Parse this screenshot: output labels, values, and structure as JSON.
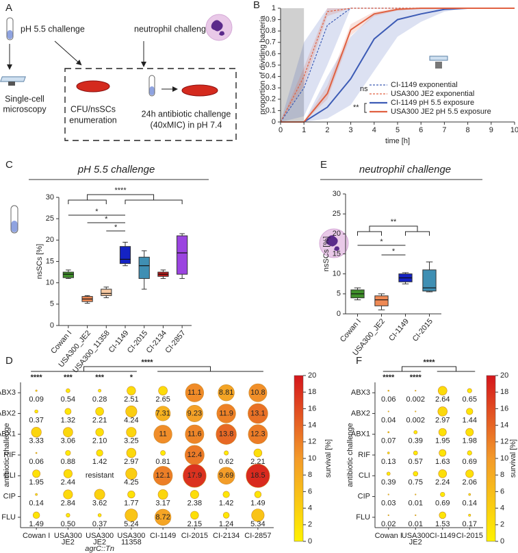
{
  "panel_labels": [
    "A",
    "B",
    "C",
    "D",
    "E",
    "F"
  ],
  "diagram": {
    "ph_challenge": "pH 5.5 challenge",
    "neutrophil_challenge": "neutrophil challenge",
    "microscopy": [
      "Single-cell",
      "microscopy"
    ],
    "enumeration": [
      "CFU/nsSCs",
      "enumeration"
    ],
    "antibiotic": [
      "24h antibiotic challenge",
      "(40xMIC) in pH 7.4"
    ]
  },
  "chart_data": [
    {
      "type": "line",
      "xlabel": "time [h]",
      "ylabel": "proportion of dividing bacteria",
      "x": [
        0,
        1,
        2,
        3,
        4,
        5,
        6,
        7,
        8,
        9,
        10
      ],
      "xlim": [
        0,
        10
      ],
      "xticks": [
        0,
        1,
        2,
        3,
        4,
        5,
        6,
        7,
        8,
        9,
        10
      ],
      "ylim": [
        0,
        1
      ],
      "yticks": [
        0,
        0.1,
        0.2,
        0.3,
        0.4,
        0.5,
        0.6,
        0.7,
        0.8,
        0.9,
        1
      ],
      "highlight_x": [
        0,
        1
      ],
      "highlight_color": "#d0d0d0",
      "annotations": [
        "ns",
        "**"
      ],
      "series": [
        {
          "name": "CI-1149 exponential",
          "color": "#3c5bb5",
          "linestyle": "dashed",
          "values": [
            0,
            0.3,
            0.85,
            1,
            1,
            1,
            1,
            1,
            1,
            1,
            1
          ],
          "lower": [
            0,
            0.05,
            0.5,
            1,
            1,
            1,
            1,
            1,
            1,
            1,
            1
          ],
          "upper": [
            0,
            0.7,
            1,
            1,
            1,
            1,
            1,
            1,
            1,
            1,
            1
          ]
        },
        {
          "name": "USA300 JE2 exponential",
          "color": "#e06040",
          "linestyle": "dashed",
          "values": [
            0,
            0.4,
            0.97,
            1,
            1,
            1,
            1,
            1,
            1,
            1,
            1
          ],
          "lower": [
            0,
            0.32,
            0.93,
            1,
            1,
            1,
            1,
            1,
            1,
            1,
            1
          ],
          "upper": [
            0,
            0.48,
            1,
            1,
            1,
            1,
            1,
            1,
            1,
            1,
            1
          ]
        },
        {
          "name": "CI-1149 pH 5.5 exposure",
          "color": "#3c5bb5",
          "linestyle": "solid",
          "values": [
            0,
            0,
            0.13,
            0.38,
            0.73,
            0.9,
            0.95,
            0.99,
            1,
            1,
            1
          ],
          "lower": [
            0,
            0,
            0.03,
            0.15,
            0.45,
            0.75,
            0.88,
            0.97,
            1,
            1,
            1
          ],
          "upper": [
            0,
            0,
            0.4,
            0.75,
            0.95,
            0.99,
            1,
            1,
            1,
            1,
            1
          ]
        },
        {
          "name": "USA300 JE2 pH 5.5 exposure",
          "color": "#e06040",
          "linestyle": "solid",
          "values": [
            0,
            0,
            0.25,
            0.81,
            0.95,
            0.99,
            1,
            1,
            1,
            1,
            1
          ],
          "lower": [
            0,
            0,
            0.2,
            0.76,
            0.93,
            0.98,
            1,
            1,
            1,
            1,
            1
          ],
          "upper": [
            0,
            0,
            0.32,
            0.86,
            0.97,
            1,
            1,
            1,
            1,
            1,
            1
          ]
        }
      ]
    },
    {
      "type": "box",
      "title": "pH 5.5 challenge",
      "ylabel": "nsSCs [%]",
      "ylim": [
        0,
        30
      ],
      "yticks": [
        0,
        5,
        10,
        15,
        20,
        25,
        30
      ],
      "categories": [
        "Cowan I",
        "USA300_JE2",
        "USA300_11358",
        "CI-1149",
        "CI-2015",
        "CI-2134",
        "CI-2857"
      ],
      "colors": [
        "#3f8f2a",
        "#ef8a55",
        "#f7c9a2",
        "#1423c4",
        "#3f8fb3",
        "#c41c1c",
        "#9b44e0"
      ],
      "min": [
        11,
        5.2,
        6.5,
        14,
        8.5,
        11,
        11
      ],
      "q1": [
        11.2,
        5.6,
        7,
        14.5,
        11,
        11.5,
        12
      ],
      "median": [
        12,
        6.2,
        7.5,
        15.5,
        14,
        12,
        17
      ],
      "q3": [
        12.5,
        6.8,
        8.5,
        18.5,
        16,
        12.5,
        21
      ],
      "max": [
        13,
        7,
        9,
        19.5,
        17.5,
        13,
        21.5
      ],
      "significance": [
        "****",
        "*",
        "*",
        "*"
      ]
    },
    {
      "type": "box",
      "title": "neutrophil challenge",
      "ylabel": "nsSCs [%]",
      "ylim": [
        0,
        30
      ],
      "yticks": [
        0,
        5,
        10,
        15,
        20,
        25,
        30
      ],
      "categories": [
        "Cowan I",
        "USA300_JE2",
        "CI-1149",
        "CI-2015"
      ],
      "colors": [
        "#3f8f2a",
        "#ef8a55",
        "#1423c4",
        "#3f8fb3"
      ],
      "min": [
        3.5,
        1,
        7.5,
        5.5
      ],
      "q1": [
        4,
        2,
        8,
        5.7
      ],
      "median": [
        5,
        3.5,
        9,
        6.5
      ],
      "q3": [
        6,
        4.5,
        10,
        11
      ],
      "max": [
        6.5,
        5,
        10.3,
        13
      ],
      "significance": [
        "**",
        "*",
        "*"
      ]
    },
    {
      "type": "bubble",
      "ylabel": "antibiotic challenge",
      "rows": [
        "ABX3",
        "ABX2",
        "ABX1",
        "RIF",
        "CLI",
        "CIP",
        "FLU"
      ],
      "categories": [
        [
          "Cowan I"
        ],
        [
          "USA300",
          "JE2"
        ],
        [
          "USA300",
          "JE2",
          "agrC::Tn"
        ],
        [
          "USA300",
          "11358"
        ],
        [
          "CI-1149"
        ],
        [
          "CI-2015"
        ],
        [
          "CI-2134"
        ],
        [
          "CI-2857"
        ]
      ],
      "values": [
        [
          0.09,
          0.54,
          0.28,
          2.51,
          2.65,
          11.1,
          8.81,
          10.8
        ],
        [
          0.37,
          1.32,
          2.21,
          4.24,
          7.31,
          9.23,
          11.9,
          13.1
        ],
        [
          3.33,
          3.06,
          2.1,
          3.25,
          11,
          11.6,
          13.8,
          12.3
        ],
        [
          0.06,
          0.88,
          1.42,
          2.97,
          0.81,
          12.4,
          0.62,
          2.21
        ],
        [
          1.95,
          2.44,
          null,
          4.25,
          12.1,
          17.9,
          9.69,
          18.5
        ],
        [
          0.14,
          2.84,
          3.62,
          1.77,
          3.17,
          2.38,
          1.42,
          1.49
        ],
        [
          1.49,
          0.5,
          0.37,
          5.24,
          8.72,
          2.15,
          1.24,
          5.34
        ]
      ],
      "value_labels": [
        [
          "0.09",
          "0.54",
          "0.28",
          "2.51",
          "2.65",
          "11.1",
          "8.81",
          "10.8"
        ],
        [
          "0.37",
          "1.32",
          "2.21",
          "4.24",
          "7.31",
          "9.23",
          "11.9",
          "13.1"
        ],
        [
          "3.33",
          "3.06",
          "2.10",
          "3.25",
          "11",
          "11.6",
          "13.8",
          "12.3"
        ],
        [
          "0.06",
          "0.88",
          "1.42",
          "2.97",
          "0.81",
          "12.4",
          "0.62",
          "2.21"
        ],
        [
          "1.95",
          "2.44",
          "resistant",
          "4.25",
          "12.1",
          "17.9",
          "9.69",
          "18.5"
        ],
        [
          "0.14",
          "2.84",
          "3.62",
          "1.77",
          "3.17",
          "2.38",
          "1.42",
          "1.49"
        ],
        [
          "1.49",
          "0.50",
          "0.37",
          "5.24",
          "8.72",
          "2.15",
          "1.24",
          "5.34"
        ]
      ],
      "significance": [
        "****",
        "***",
        "***",
        "*"
      ],
      "group_significance": "****",
      "colorbar": {
        "label": "survival [%]",
        "lim": [
          0,
          20
        ],
        "ticks": [
          0,
          2,
          4,
          6,
          8,
          10,
          12,
          14,
          16,
          18,
          20
        ],
        "colors": [
          "#fff200",
          "#f39a2a",
          "#d4161c"
        ]
      }
    },
    {
      "type": "bubble",
      "ylabel": "antibiotic challenge",
      "rows": [
        "ABX3",
        "ABX2",
        "ABX1",
        "RIF",
        "CLI",
        "CIP",
        "FLU"
      ],
      "categories": [
        [
          "Cowan I"
        ],
        [
          "USA300",
          "JE2"
        ],
        [
          "CI-1149"
        ],
        [
          "CI-2015"
        ]
      ],
      "values": [
        [
          0.06,
          0.002,
          2.64,
          0.65
        ],
        [
          0.04,
          0.002,
          2.97,
          1.44
        ],
        [
          0.07,
          0.39,
          1.95,
          1.98
        ],
        [
          0.13,
          0.57,
          1.63,
          0.69
        ],
        [
          0.39,
          0.75,
          2.24,
          2.06
        ],
        [
          0.03,
          0.01,
          0.69,
          0.14
        ],
        [
          0.02,
          0.01,
          1.53,
          0.17
        ]
      ],
      "value_labels": [
        [
          "0.06",
          "0.002",
          "2.64",
          "0.65"
        ],
        [
          "0.04",
          "0.002",
          "2.97",
          "1.44"
        ],
        [
          "0.07",
          "0.39",
          "1.95",
          "1.98"
        ],
        [
          "0.13",
          "0.57",
          "1.63",
          "0.69"
        ],
        [
          "0.39",
          "0.75",
          "2.24",
          "2.06"
        ],
        [
          "0.03",
          "0.01",
          "0.69",
          "0.14"
        ],
        [
          "0.02",
          "0.01",
          "1.53",
          "0.17"
        ]
      ],
      "significance": [
        "****",
        "****"
      ],
      "group_significance": "****",
      "colorbar": {
        "label": "survival [%]",
        "lim": [
          0,
          20
        ],
        "ticks": [
          0,
          2,
          4,
          6,
          8,
          10,
          12,
          14,
          16,
          18,
          20
        ],
        "colors": [
          "#fff200",
          "#f39a2a",
          "#d4161c"
        ]
      }
    }
  ]
}
